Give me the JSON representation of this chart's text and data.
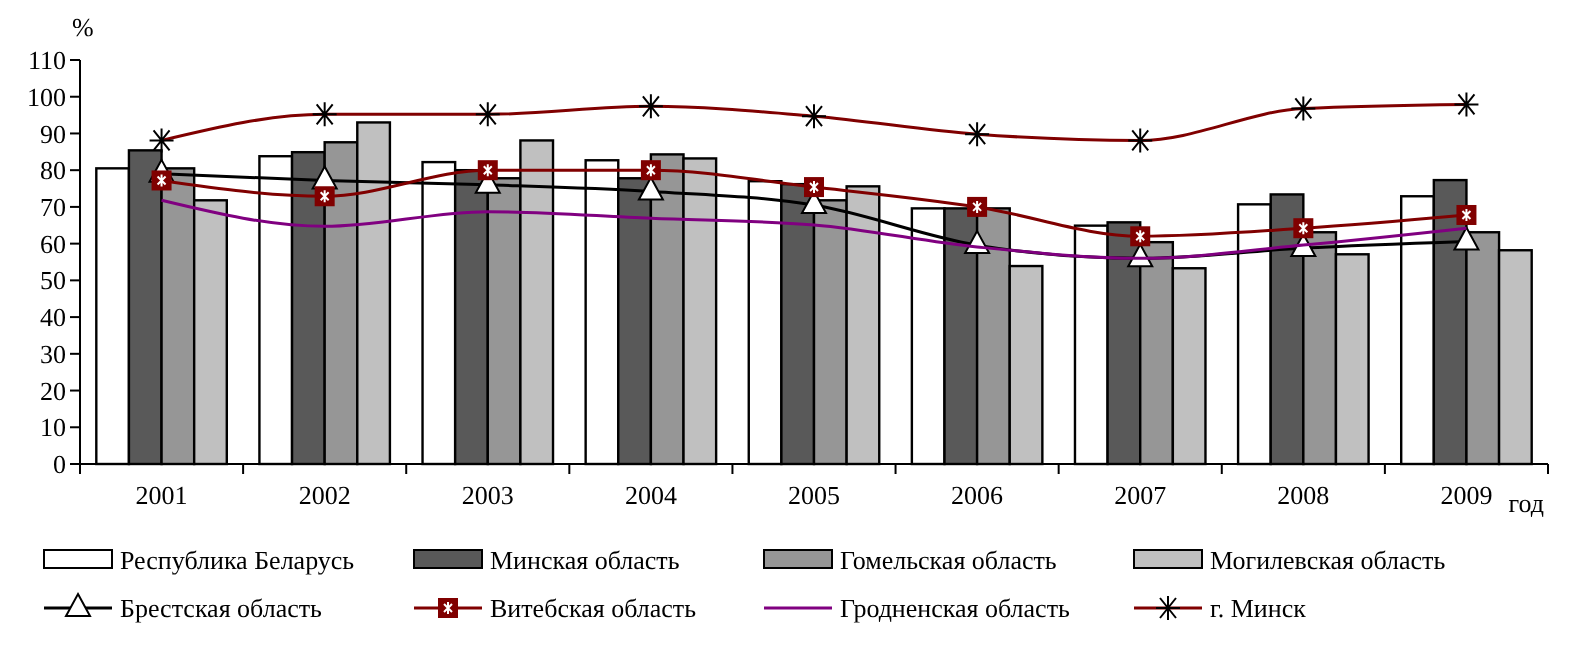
{
  "chart_data": {
    "type": "bar",
    "xlabel": "год",
    "ylabel": "%",
    "categories": [
      "2001",
      "2002",
      "2003",
      "2004",
      "2005",
      "2006",
      "2007",
      "2008",
      "2009"
    ],
    "ylim": [
      0,
      110
    ],
    "yticks": [
      0,
      10,
      20,
      30,
      40,
      50,
      60,
      70,
      80,
      90,
      100,
      110
    ],
    "grid": false,
    "legend": "bottom",
    "series": [
      {
        "name": "Республика Беларусь",
        "color": "#ffffff",
        "values": [
          80.5,
          83.8,
          82.2,
          82.7,
          77,
          69.6,
          64.9,
          70.7,
          72.9
        ]
      },
      {
        "name": "Минская область",
        "color": "#595959",
        "values": [
          85.4,
          84.9,
          80,
          77.8,
          76.2,
          69.6,
          65.8,
          73.4,
          77.3
        ]
      },
      {
        "name": "Гомельская область",
        "color": "#969696",
        "values": [
          80.5,
          87.6,
          77.8,
          84.3,
          71.8,
          69.6,
          60.4,
          63.1,
          63.1
        ]
      },
      {
        "name": "Могилевская область",
        "color": "#c0c0c0",
        "values": [
          71.8,
          93,
          88.1,
          83.2,
          75.6,
          53.9,
          53.3,
          57.1,
          58.2
        ]
      },
      {
        "name": "Брестская область",
        "type": "line",
        "color": "#000000",
        "marker": "triangle",
        "values": [
          79,
          77.2,
          76,
          74.2,
          70.5,
          59.6,
          56,
          58.8,
          60.6
        ]
      },
      {
        "name": "Витебская область",
        "type": "line",
        "color": "#800000",
        "marker": "square",
        "values": [
          77.2,
          72.9,
          80,
          80,
          75.4,
          70,
          62,
          64.2,
          67.8
        ]
      },
      {
        "name": "Гродненская область",
        "type": "line",
        "color": "#800080",
        "marker": "none",
        "values": [
          71.8,
          64.7,
          68.7,
          66.9,
          65.1,
          59.1,
          56,
          59.6,
          64.2
        ]
      },
      {
        "name": "г. Минск",
        "type": "line",
        "color": "#800000",
        "marker": "cross",
        "values": [
          88.1,
          95.2,
          95.2,
          97.4,
          94.7,
          89.8,
          88.1,
          96.8,
          97.9
        ]
      }
    ]
  }
}
